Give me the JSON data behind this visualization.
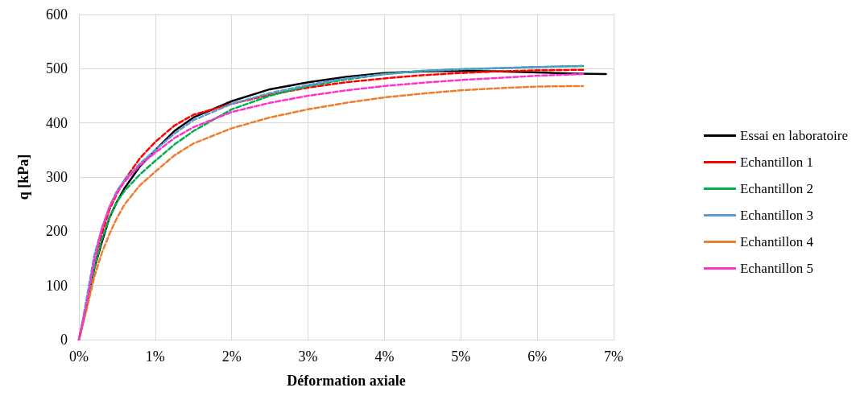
{
  "chart_data": {
    "type": "line",
    "xlabel": "Déformation axiale",
    "ylabel": "q [kPa]",
    "xlim": [
      0,
      7
    ],
    "ylim": [
      0,
      600
    ],
    "xticks": [
      {
        "value": 0,
        "label": "0%"
      },
      {
        "value": 1,
        "label": "1%"
      },
      {
        "value": 2,
        "label": "2%"
      },
      {
        "value": 3,
        "label": "3%"
      },
      {
        "value": 4,
        "label": "4%"
      },
      {
        "value": 5,
        "label": "5%"
      },
      {
        "value": 6,
        "label": "6%"
      },
      {
        "value": 7,
        "label": "7%"
      }
    ],
    "yticks": [
      0,
      100,
      200,
      300,
      400,
      500,
      600
    ],
    "grid": true,
    "legend": "right",
    "series": [
      {
        "name": "Essai en laboratoire",
        "color": "#000000",
        "line_style": "solid",
        "x": [
          0,
          0.1,
          0.2,
          0.3,
          0.4,
          0.5,
          0.6,
          0.8,
          1,
          1.25,
          1.5,
          2,
          2.5,
          3,
          3.5,
          4,
          4.5,
          5,
          5.5,
          6,
          6.5,
          6.9
        ],
        "values": [
          0,
          60,
          130,
          180,
          225,
          255,
          280,
          320,
          350,
          385,
          410,
          440,
          462,
          475,
          485,
          492,
          495,
          496,
          495,
          493,
          491,
          490
        ]
      },
      {
        "name": "Echantillon 1",
        "color": "#ff0000",
        "line_style": "dashed",
        "x": [
          0,
          0.1,
          0.2,
          0.3,
          0.4,
          0.5,
          0.6,
          0.8,
          1,
          1.25,
          1.5,
          2,
          2.5,
          3,
          3.5,
          4,
          4.5,
          5,
          5.5,
          6,
          6.6
        ],
        "values": [
          0,
          65,
          140,
          195,
          240,
          270,
          295,
          335,
          365,
          395,
          415,
          435,
          452,
          465,
          475,
          482,
          488,
          492,
          495,
          497,
          498
        ]
      },
      {
        "name": "Echantillon 2",
        "color": "#00b050",
        "line_style": "dashed",
        "x": [
          0,
          0.1,
          0.2,
          0.3,
          0.4,
          0.5,
          0.6,
          0.8,
          1,
          1.25,
          1.5,
          2,
          2.5,
          3,
          3.5,
          4,
          4.5,
          5,
          5.5,
          6,
          6.6
        ],
        "values": [
          0,
          60,
          130,
          185,
          225,
          255,
          275,
          305,
          330,
          360,
          385,
          425,
          450,
          468,
          480,
          490,
          496,
          499,
          501,
          503,
          505
        ]
      },
      {
        "name": "Echantillon 3",
        "color": "#5b9bd5",
        "line_style": "dashed",
        "x": [
          0.03,
          0.1,
          0.2,
          0.3,
          0.4,
          0.5,
          0.6,
          0.8,
          1,
          1.25,
          1.5,
          2,
          2.5,
          3,
          3.5,
          4,
          4.5,
          5,
          5.5,
          6,
          6.6
        ],
        "values": [
          20,
          75,
          155,
          205,
          245,
          275,
          295,
          325,
          350,
          380,
          405,
          435,
          455,
          470,
          482,
          490,
          496,
          499,
          501,
          503,
          505
        ]
      },
      {
        "name": "Echantillon 4",
        "color": "#ed7d31",
        "line_style": "dashed",
        "x": [
          0,
          0.1,
          0.2,
          0.3,
          0.4,
          0.5,
          0.6,
          0.8,
          1,
          1.25,
          1.5,
          2,
          2.5,
          3,
          3.5,
          4,
          4.5,
          5,
          5.5,
          6,
          6.6
        ],
        "values": [
          0,
          55,
          115,
          160,
          195,
          225,
          250,
          285,
          310,
          340,
          362,
          390,
          410,
          425,
          437,
          447,
          454,
          460,
          464,
          467,
          468
        ]
      },
      {
        "name": "Echantillon 5",
        "color": "#ff33cc",
        "line_style": "dashed",
        "x": [
          0,
          0.1,
          0.2,
          0.3,
          0.4,
          0.5,
          0.6,
          0.8,
          1,
          1.25,
          1.5,
          2,
          2.5,
          3,
          3.5,
          4,
          4.5,
          5,
          5.5,
          6,
          6.6
        ],
        "values": [
          0,
          65,
          145,
          205,
          245,
          272,
          292,
          322,
          345,
          372,
          392,
          420,
          437,
          450,
          460,
          468,
          474,
          479,
          483,
          487,
          490
        ]
      }
    ]
  }
}
